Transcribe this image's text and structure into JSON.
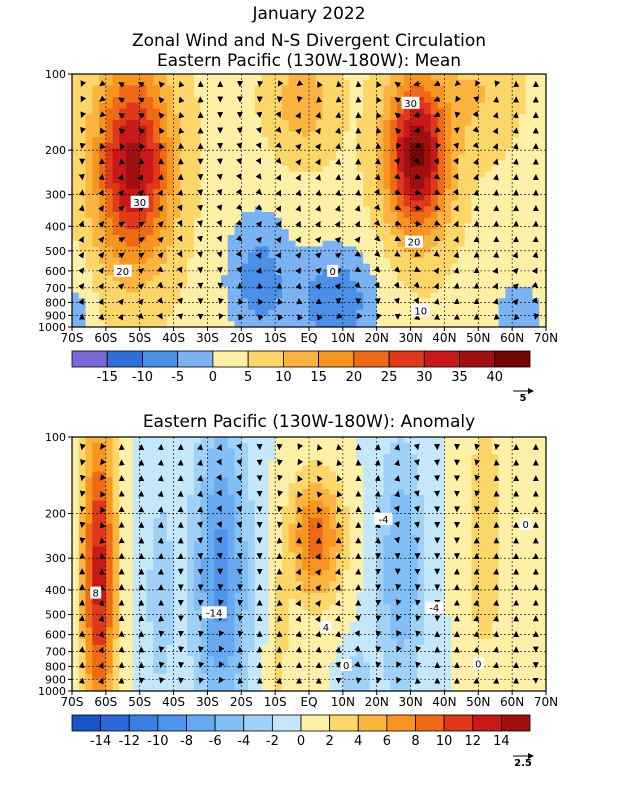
{
  "header": {
    "line1": "January 2022",
    "line2": "Zonal Wind and N-S Divergent Circulation",
    "line3": "Eastern Pacific (130W-180W): Mean"
  },
  "chart_data": [
    {
      "type": "heatmap",
      "title": "Eastern Pacific (130W-180W): Mean",
      "x_ticks": [
        "70S",
        "60S",
        "50S",
        "40S",
        "30S",
        "20S",
        "10S",
        "EQ",
        "10N",
        "20N",
        "30N",
        "40N",
        "50N",
        "60N",
        "70N"
      ],
      "y_ticks": [
        "100",
        "200",
        "300",
        "400",
        "500",
        "600",
        "700",
        "800",
        "900",
        "1000"
      ],
      "y_scale": "log",
      "ylim": [
        1000,
        100
      ],
      "colorbar_levels": [
        "-15",
        "-10",
        "-5",
        "0",
        "5",
        "10",
        "15",
        "20",
        "25",
        "30",
        "35",
        "40"
      ],
      "colorbar_colors": [
        "#7b68d8",
        "#2f6fd8",
        "#4a8fe8",
        "#7ab2f4",
        "#fff0a8",
        "#fdd66a",
        "#fbb440",
        "#f89420",
        "#ef6a17",
        "#e0381a",
        "#c81818",
        "#a01010",
        "#760606"
      ],
      "vector_reference": "5",
      "contour_labels": [
        {
          "text": "30",
          "lat": -50,
          "p": 320
        },
        {
          "text": "20",
          "lat": -55,
          "p": 600
        },
        {
          "text": "30",
          "lat": 30,
          "p": 130
        },
        {
          "text": "20",
          "lat": 31,
          "p": 460
        },
        {
          "text": "0",
          "lat": 7,
          "p": 600
        },
        {
          "text": "10",
          "lat": 33,
          "p": 860
        }
      ]
    },
    {
      "type": "heatmap",
      "title": "Eastern Pacific (130W-180W): Anomaly",
      "x_ticks": [
        "70S",
        "60S",
        "50S",
        "40S",
        "30S",
        "20S",
        "10S",
        "EQ",
        "10N",
        "20N",
        "30N",
        "40N",
        "50N",
        "60N",
        "70N"
      ],
      "y_ticks": [
        "100",
        "200",
        "300",
        "400",
        "500",
        "600",
        "700",
        "800",
        "900",
        "1000"
      ],
      "y_scale": "log",
      "ylim": [
        1000,
        100
      ],
      "colorbar_levels": [
        "-14",
        "-12",
        "-10",
        "-8",
        "-6",
        "-4",
        "-2",
        "0",
        "2",
        "4",
        "6",
        "8",
        "10",
        "12",
        "14"
      ],
      "colorbar_colors": [
        "#1a55c8",
        "#2a6ad8",
        "#3a80e4",
        "#4f95ec",
        "#68aaf2",
        "#82bff6",
        "#a0d2f8",
        "#c4e8fa",
        "#fff0a8",
        "#fdd66a",
        "#fbb440",
        "#f89420",
        "#ef6a17",
        "#e0381a",
        "#c81818",
        "#a01010"
      ],
      "vector_reference": "2.5",
      "contour_labels": [
        {
          "text": "8",
          "lat": -63,
          "p": 410
        },
        {
          "text": "-14",
          "lat": -28,
          "p": 490
        },
        {
          "text": "4",
          "lat": 5,
          "p": 560
        },
        {
          "text": "-4",
          "lat": 22,
          "p": 210
        },
        {
          "text": "-4",
          "lat": 37,
          "p": 470
        },
        {
          "text": "0",
          "lat": 64,
          "p": 220
        },
        {
          "text": "0",
          "lat": 11,
          "p": 790
        },
        {
          "text": "0",
          "lat": 50,
          "p": 780
        }
      ]
    }
  ]
}
